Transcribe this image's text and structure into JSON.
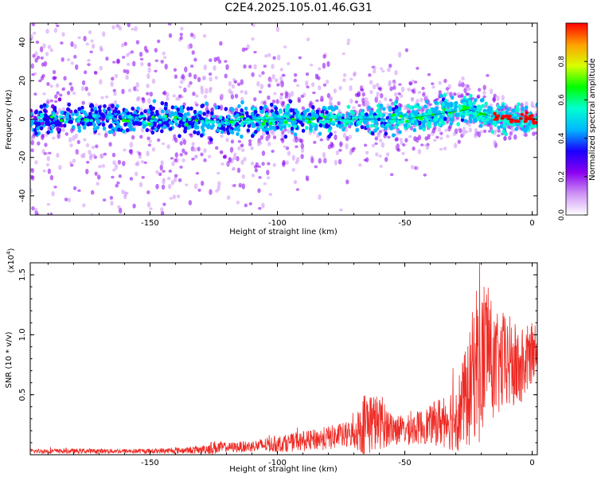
{
  "figure": {
    "title": "C2E4.2025.105.01.46.G31"
  },
  "chart_data": [
    {
      "type": "heatmap",
      "title": "C2E4.2025.105.01.46.G31",
      "xlabel": "Height of straight line (km)",
      "ylabel": "Frequency (Hz)",
      "xlim": [
        -197,
        2
      ],
      "ylim": [
        -50,
        50
      ],
      "x_ticks": [
        -150,
        -100,
        -50,
        0
      ],
      "y_ticks": [
        -40,
        -20,
        0,
        20,
        40
      ],
      "colorbar": {
        "label": "Normalized spectral amplitude",
        "range": [
          0,
          1
        ],
        "ticks": [
          "0.0",
          "0.2",
          "0.4",
          "0.6",
          "0.8"
        ],
        "colormap": [
          "#ffffff",
          "#ce93f5",
          "#8a00f0",
          "#1a00ff",
          "#00b8ff",
          "#00ffd0",
          "#00ff00",
          "#d8ff00",
          "#ffa000",
          "#ff0000"
        ]
      },
      "trace": {
        "x": [
          -197,
          -180,
          -160,
          -140,
          -120,
          -100,
          -80,
          -60,
          -50,
          -40,
          -30,
          -25,
          -20,
          -15,
          -10,
          -5,
          0,
          2
        ],
        "y": [
          0,
          0,
          0,
          0,
          -1,
          0,
          0,
          0,
          0,
          2,
          4,
          5,
          3,
          1,
          0,
          0,
          0,
          0
        ]
      },
      "trace_color": "#000000"
    },
    {
      "type": "line",
      "title": "",
      "xlabel": "Height of straight line (km)",
      "ylabel": "SNR (10 * v/v)",
      "scale_label": "(x10",
      "scale_exp": "4",
      "scale_tail": ")",
      "xlim": [
        -197,
        2
      ],
      "ylim": [
        0,
        1.6
      ],
      "x_ticks": [
        -150,
        -100,
        -50,
        0
      ],
      "y_ticks": [
        "0.5",
        "1.0",
        "1.5"
      ],
      "line_color": "#ee2a24",
      "envelope": {
        "x": [
          -197,
          -150,
          -130,
          -125,
          -120,
          -110,
          -100,
          -90,
          -80,
          -70,
          -65,
          -60,
          -55,
          -50,
          -40,
          -30,
          -25,
          -22,
          -20,
          -18,
          -15,
          -10,
          -5,
          0,
          2
        ],
        "mean": [
          0.03,
          0.03,
          0.04,
          0.06,
          0.06,
          0.07,
          0.09,
          0.11,
          0.14,
          0.17,
          0.28,
          0.26,
          0.22,
          0.2,
          0.25,
          0.32,
          0.5,
          0.8,
          0.7,
          0.95,
          0.72,
          0.78,
          0.7,
          0.85,
          0.95
        ],
        "amp": [
          0.02,
          0.02,
          0.03,
          0.06,
          0.04,
          0.05,
          0.07,
          0.08,
          0.1,
          0.12,
          0.3,
          0.22,
          0.14,
          0.12,
          0.16,
          0.3,
          0.45,
          0.65,
          0.75,
          0.55,
          0.45,
          0.42,
          0.35,
          0.25,
          0.2
        ]
      }
    }
  ]
}
